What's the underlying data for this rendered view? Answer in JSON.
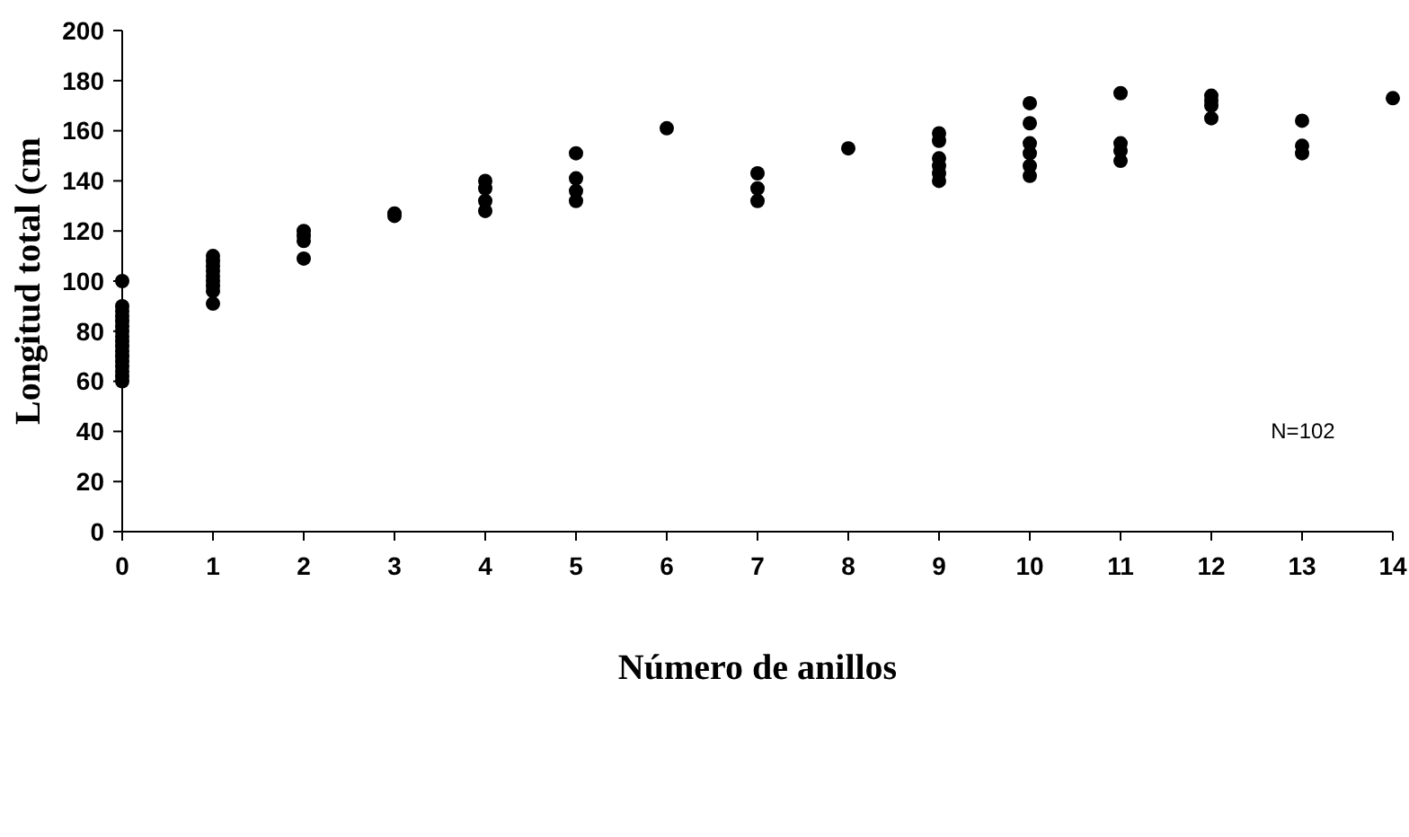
{
  "chart_data": {
    "type": "scatter",
    "xlabel": "Número de anillos",
    "ylabel": "Longitud total (cm",
    "annotations": [
      "N=102"
    ],
    "x": [
      0,
      0,
      0,
      0,
      0,
      0,
      0,
      0,
      0,
      0,
      0,
      0,
      0,
      0,
      0,
      0,
      0,
      1,
      1,
      1,
      1,
      1,
      1,
      1,
      1,
      1,
      2,
      2,
      2,
      2,
      3,
      3,
      4,
      4,
      4,
      4,
      5,
      5,
      5,
      5,
      6,
      7,
      7,
      7,
      8,
      9,
      9,
      9,
      9,
      9,
      9,
      10,
      10,
      10,
      10,
      10,
      10,
      11,
      11,
      11,
      11,
      12,
      12,
      12,
      12,
      13,
      13,
      13,
      14
    ],
    "series": [
      {
        "color": "#000000",
        "values": [
          100,
          90,
          88,
          86,
          84,
          82,
          80,
          78,
          76,
          74,
          72,
          70,
          68,
          66,
          64,
          62,
          60,
          110,
          108,
          106,
          104,
          102,
          100,
          98,
          96,
          91,
          120,
          118,
          116,
          109,
          127,
          126,
          140,
          137,
          132,
          128,
          151,
          141,
          136,
          132,
          161,
          143,
          137,
          132,
          153,
          159,
          156,
          149,
          146,
          143,
          140,
          171,
          163,
          155,
          151,
          146,
          142,
          175,
          155,
          152,
          148,
          174,
          172,
          170,
          165,
          164,
          154,
          151,
          173
        ]
      }
    ],
    "xlim": [
      0,
      14
    ],
    "xticks": [
      0,
      1,
      2,
      3,
      4,
      5,
      6,
      7,
      8,
      9,
      10,
      11,
      12,
      13,
      14
    ],
    "ylim": [
      0,
      200
    ],
    "yticks": [
      0,
      20,
      40,
      60,
      80,
      100,
      120,
      140,
      160,
      180,
      200
    ],
    "grid": false,
    "marker": "circle"
  }
}
